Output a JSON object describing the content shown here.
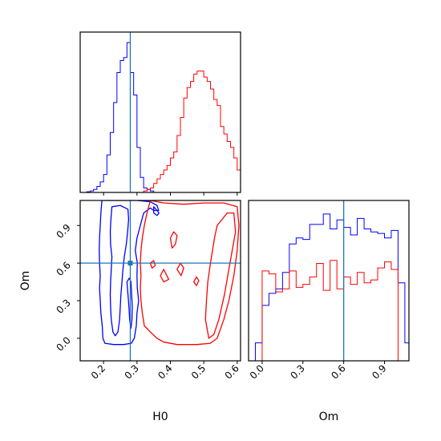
{
  "chart_data": {
    "type": "corner",
    "colors": {
      "blue": "#0000ff",
      "red": "#ff0000",
      "truth": "#1f77b4"
    },
    "params": [
      "H0",
      "Om"
    ],
    "truths": {
      "H0": 0.28,
      "Om": 0.6
    },
    "panels": [
      {
        "id": "hist-H0",
        "type": "histogram",
        "param": "H0",
        "xlim": [
          0.13,
          0.61
        ],
        "ylim": [
          0,
          1.07
        ],
        "bin_edges": [
          0.13,
          0.14,
          0.15,
          0.16,
          0.17,
          0.18,
          0.19,
          0.2,
          0.21,
          0.22,
          0.23,
          0.24,
          0.25,
          0.26,
          0.27,
          0.28,
          0.29,
          0.3,
          0.31,
          0.32,
          0.33,
          0.34,
          0.35,
          0.36,
          0.37,
          0.38,
          0.39,
          0.4,
          0.41,
          0.42,
          0.43,
          0.44,
          0.45,
          0.46,
          0.47,
          0.48,
          0.49,
          0.5,
          0.51,
          0.52,
          0.53,
          0.54,
          0.55,
          0.56,
          0.57,
          0.58,
          0.59,
          0.6,
          0.61
        ],
        "series": [
          {
            "color": "blue",
            "counts": [
              0,
              0,
              0.005,
              0.01,
              0.02,
              0.04,
              0.07,
              0.12,
              0.25,
              0.4,
              0.6,
              0.8,
              0.88,
              0.9,
              1.0,
              0.8,
              0.65,
              0.3,
              0.1,
              0.03,
              0.02,
              0.01,
              0,
              0,
              0,
              0,
              0,
              0,
              0,
              0,
              0,
              0,
              0,
              0,
              0,
              0,
              0,
              0,
              0,
              0,
              0,
              0,
              0,
              0,
              0,
              0,
              0,
              0
            ]
          },
          {
            "color": "red",
            "counts": [
              0,
              0,
              0,
              0,
              0,
              0,
              0,
              0,
              0,
              0,
              0,
              0,
              0,
              0,
              0,
              0,
              0,
              0,
              0,
              0.01,
              0.02,
              0.03,
              0.06,
              0.09,
              0.12,
              0.15,
              0.18,
              0.23,
              0.27,
              0.38,
              0.5,
              0.63,
              0.7,
              0.74,
              0.79,
              0.81,
              0.81,
              0.77,
              0.74,
              0.69,
              0.62,
              0.58,
              0.44,
              0.39,
              0.34,
              0.3,
              0.23,
              0.15
            ]
          }
        ]
      },
      {
        "id": "hist-Om",
        "type": "histogram",
        "param": "Om",
        "xlim": [
          -0.1,
          1.08
        ],
        "ylim": [
          0,
          1.07
        ],
        "ticks": [
          0.0,
          0.3,
          0.6,
          0.9
        ],
        "tick_labels": [
          "0.0",
          "0.3",
          "0.6",
          "0.9"
        ],
        "xlabel": "Om",
        "bin_edges": [
          -0.1,
          -0.05,
          0.0,
          0.05,
          0.1,
          0.15,
          0.2,
          0.25,
          0.3,
          0.35,
          0.4,
          0.45,
          0.5,
          0.55,
          0.6,
          0.65,
          0.7,
          0.75,
          0.8,
          0.85,
          0.9,
          0.95,
          1.0,
          1.05,
          1.1
        ],
        "series": [
          {
            "color": "blue",
            "counts": [
              0,
              0.12,
              0.37,
              0.45,
              0.48,
              0.59,
              0.78,
              0.82,
              0.81,
              0.91,
              0.91,
              0.98,
              0.88,
              0.94,
              0.89,
              0.84,
              0.95,
              0.88,
              0.86,
              0.85,
              0.82,
              0.87,
              0.52,
              0.12
            ]
          },
          {
            "color": "red",
            "counts": [
              0,
              0,
              0.6,
              0.58,
              0.46,
              0.48,
              0.6,
              0.49,
              0.51,
              0.56,
              0.65,
              0.47,
              0.67,
              0.48,
              0.56,
              0.51,
              0.59,
              0.52,
              0.54,
              0.62,
              0.66,
              0.61,
              0,
              0
            ]
          }
        ]
      },
      {
        "id": "contour-H0-Om",
        "type": "contour",
        "xparam": "H0",
        "yparam": "Om",
        "xlim": [
          0.13,
          0.61
        ],
        "ylim": [
          -0.18,
          1.1
        ],
        "xticks": [
          0.2,
          0.3,
          0.4,
          0.5,
          0.6
        ],
        "xtick_labels": [
          "0.2",
          "0.3",
          "0.4",
          "0.5",
          "0.6"
        ],
        "yticks": [
          0.0,
          0.3,
          0.6,
          0.9
        ],
        "ytick_labels": [
          "0.0",
          "0.3",
          "0.6",
          "0.9"
        ],
        "xlabel": "H0",
        "ylabel": "Om",
        "series": [
          {
            "color": "blue",
            "contours": [
              [
                [
                  0.195,
                  1.1
                ],
                [
                  0.192,
                  1.0
                ],
                [
                  0.19,
                  0.9
                ],
                [
                  0.188,
                  0.8
                ],
                [
                  0.187,
                  0.7
                ],
                [
                  0.188,
                  0.6
                ],
                [
                  0.19,
                  0.5
                ],
                [
                  0.188,
                  0.4
                ],
                [
                  0.19,
                  0.3
                ],
                [
                  0.192,
                  0.2
                ],
                [
                  0.196,
                  0.1
                ],
                [
                  0.198,
                  0.0
                ],
                [
                  0.204,
                  -0.04
                ],
                [
                  0.23,
                  -0.05
                ],
                [
                  0.26,
                  -0.05
                ],
                [
                  0.283,
                  -0.04
                ],
                [
                  0.292,
                  0.0
                ],
                [
                  0.298,
                  0.1
                ],
                [
                  0.3,
                  0.2
                ],
                [
                  0.305,
                  0.3
                ],
                [
                  0.301,
                  0.4
                ],
                [
                  0.3,
                  0.5
                ],
                [
                  0.301,
                  0.6
                ],
                [
                  0.295,
                  0.7
                ],
                [
                  0.3,
                  0.8
                ],
                [
                  0.31,
                  0.9
                ],
                [
                  0.32,
                  1.0
                ],
                [
                  0.34,
                  1.04
                ],
                [
                  0.35,
                  1.02
                ],
                [
                  0.365,
                  1.02
                ],
                [
                  0.36,
                  1.06
                ],
                [
                  0.34,
                  1.09
                ],
                [
                  0.3,
                  1.1
                ]
              ],
              [
                [
                  0.225,
                  1.05
                ],
                [
                  0.222,
                  0.95
                ],
                [
                  0.22,
                  0.85
                ],
                [
                  0.221,
                  0.75
                ],
                [
                  0.225,
                  0.65
                ],
                [
                  0.223,
                  0.55
                ],
                [
                  0.221,
                  0.45
                ],
                [
                  0.22,
                  0.35
                ],
                [
                  0.221,
                  0.25
                ],
                [
                  0.223,
                  0.15
                ],
                [
                  0.228,
                  0.05
                ],
                [
                  0.235,
                  0.02
                ],
                [
                  0.243,
                  0.05
                ],
                [
                  0.248,
                  0.15
                ],
                [
                  0.25,
                  0.25
                ],
                [
                  0.252,
                  0.35
                ],
                [
                  0.255,
                  0.45
                ],
                [
                  0.258,
                  0.55
                ],
                [
                  0.262,
                  0.65
                ],
                [
                  0.268,
                  0.75
                ],
                [
                  0.272,
                  0.85
                ],
                [
                  0.275,
                  0.95
                ],
                [
                  0.273,
                  1.03
                ],
                [
                  0.25,
                  1.06
                ]
              ],
              [
                [
                  0.27,
                  0.45
                ],
                [
                  0.273,
                  0.35
                ],
                [
                  0.276,
                  0.25
                ],
                [
                  0.278,
                  0.15
                ],
                [
                  0.282,
                  0.08
                ],
                [
                  0.285,
                  0.15
                ],
                [
                  0.286,
                  0.25
                ],
                [
                  0.284,
                  0.35
                ],
                [
                  0.282,
                  0.45
                ],
                [
                  0.277,
                  0.48
                ]
              ],
              [
                [
                  0.35,
                  1.05
                ],
                [
                  0.36,
                  1.02
                ],
                [
                  0.366,
                  1.0
                ],
                [
                  0.36,
                  0.98
                ],
                [
                  0.35,
                  1.0
                ]
              ]
            ]
          },
          {
            "color": "red",
            "contours": [
              [
                [
                  0.34,
                  1.1
                ],
                [
                  0.33,
                  1.0
                ],
                [
                  0.322,
                  0.9
                ],
                [
                  0.316,
                  0.8
                ],
                [
                  0.312,
                  0.7
                ],
                [
                  0.31,
                  0.6
                ],
                [
                  0.312,
                  0.5
                ],
                [
                  0.31,
                  0.4
                ],
                [
                  0.312,
                  0.3
                ],
                [
                  0.316,
                  0.2
                ],
                [
                  0.322,
                  0.1
                ],
                [
                  0.34,
                  0.05
                ],
                [
                  0.36,
                  0.0
                ],
                [
                  0.38,
                  -0.03
                ],
                [
                  0.42,
                  -0.05
                ],
                [
                  0.48,
                  -0.05
                ],
                [
                  0.52,
                  -0.04
                ],
                [
                  0.54,
                  0.0
                ],
                [
                  0.56,
                  0.15
                ],
                [
                  0.575,
                  0.3
                ],
                [
                  0.59,
                  0.5
                ],
                [
                  0.6,
                  0.7
                ],
                [
                  0.605,
                  0.9
                ],
                [
                  0.6,
                  1.05
                ],
                [
                  0.56,
                  1.08
                ],
                [
                  0.5,
                  1.08
                ],
                [
                  0.44,
                  1.07
                ],
                [
                  0.38,
                  1.08
                ]
              ],
              [
                [
                  0.4,
                  0.8
                ],
                [
                  0.41,
                  0.85
                ],
                [
                  0.42,
                  0.82
                ],
                [
                  0.415,
                  0.75
                ],
                [
                  0.405,
                  0.72
                ]
              ],
              [
                [
                  0.42,
                  0.55
                ],
                [
                  0.43,
                  0.6
                ],
                [
                  0.44,
                  0.56
                ],
                [
                  0.432,
                  0.5
                ]
              ],
              [
                [
                  0.38,
                  0.55
                ],
                [
                  0.37,
                  0.5
                ],
                [
                  0.38,
                  0.45
                ],
                [
                  0.395,
                  0.47
                ]
              ],
              [
                [
                  0.47,
                  0.45
                ],
                [
                  0.478,
                  0.49
                ],
                [
                  0.485,
                  0.46
                ],
                [
                  0.478,
                  0.42
                ]
              ],
              [
                [
                  0.34,
                  0.6
                ],
                [
                  0.35,
                  0.62
                ],
                [
                  0.355,
                  0.58
                ],
                [
                  0.345,
                  0.56
                ]
              ],
              [
                [
                  0.505,
                  0.15
                ],
                [
                  0.508,
                  0.3
                ],
                [
                  0.512,
                  0.45
                ],
                [
                  0.52,
                  0.6
                ],
                [
                  0.532,
                  0.8
                ],
                [
                  0.54,
                  0.9
                ],
                [
                  0.555,
                  0.95
                ],
                [
                  0.57,
                  1.0
                ],
                [
                  0.59,
                  1.0
                ],
                [
                  0.595,
                  0.85
                ],
                [
                  0.585,
                  0.7
                ],
                [
                  0.575,
                  0.55
                ],
                [
                  0.562,
                  0.35
                ],
                [
                  0.545,
                  0.15
                ],
                [
                  0.53,
                  0.03
                ],
                [
                  0.515,
                  0.0
                ]
              ]
            ]
          }
        ]
      }
    ]
  }
}
